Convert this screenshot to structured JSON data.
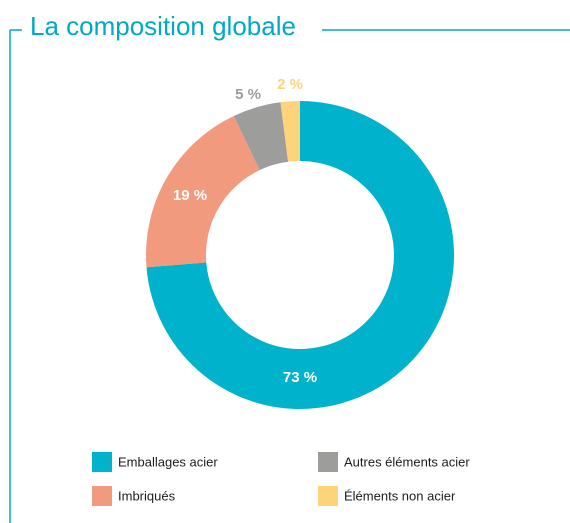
{
  "chart_data": {
    "type": "donut",
    "title": "La composition globale",
    "categories": [
      "Emballages acier",
      "Imbriqués",
      "Autres éléments acier",
      "Éléments non acier"
    ],
    "values": [
      73,
      19,
      5,
      2
    ],
    "value_labels": [
      "73 %",
      "19 %",
      "5 %",
      "2 %"
    ],
    "colors": [
      "#00b2cc",
      "#f19a7e",
      "#9d9d9c",
      "#fdd37b"
    ]
  }
}
